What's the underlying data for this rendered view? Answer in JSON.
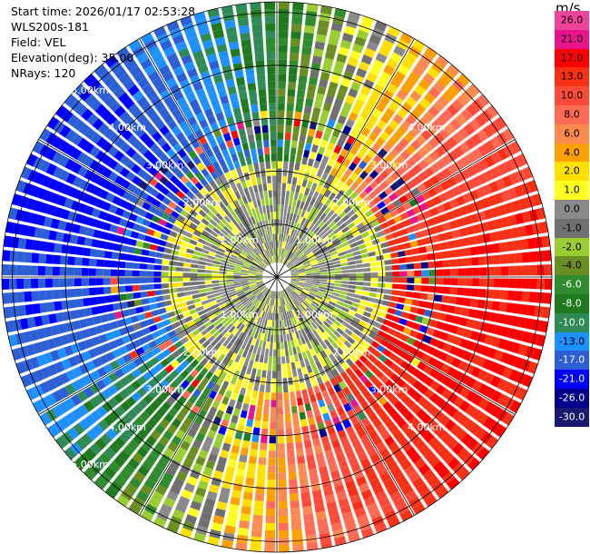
{
  "info": {
    "start_time": "Start time: 2026/01/17 02:53:28",
    "instrument": "WLS200s-181",
    "field": "Field: VEL",
    "elevation": "Elevation(deg): 35.00",
    "nrays": "NRays: 120"
  },
  "colorbar": {
    "unit": "m/s",
    "levels": [
      {
        "label": "26.0",
        "color": "#f0449a"
      },
      {
        "label": "21.0",
        "color": "#e8148c"
      },
      {
        "label": "17.0",
        "color": "#ff0000"
      },
      {
        "label": "13.0",
        "color": "#f83016"
      },
      {
        "label": "10.0",
        "color": "#ff4a3a"
      },
      {
        "label": "8.0",
        "color": "#ff6b55"
      },
      {
        "label": "6.0",
        "color": "#ff8a50"
      },
      {
        "label": "4.0",
        "color": "#ffa000"
      },
      {
        "label": "2.0",
        "color": "#ffe000"
      },
      {
        "label": "1.0",
        "color": "#ffff20"
      },
      {
        "label": "0.0",
        "color": "#8a8a8a"
      },
      {
        "label": "-1.0",
        "color": "#707070"
      },
      {
        "label": "-2.0",
        "color": "#9acd32"
      },
      {
        "label": "-4.0",
        "color": "#6b8e23"
      },
      {
        "label": "-6.0",
        "color": "#2e8b2e"
      },
      {
        "label": "-8.0",
        "color": "#1f7a1f"
      },
      {
        "label": "-10.0",
        "color": "#2e8b57"
      },
      {
        "label": "-13.0",
        "color": "#1e90ff"
      },
      {
        "label": "-17.0",
        "color": "#2c5fd6"
      },
      {
        "label": "-21.0",
        "color": "#0000ff"
      },
      {
        "label": "-26.0",
        "color": "#00008b"
      },
      {
        "label": "-30.0",
        "color": "#191970"
      }
    ]
  },
  "chart_data": {
    "type": "heatmap",
    "projection": "polar (PPI)",
    "range_rings": [
      {
        "label": "1.00km",
        "km": 1.0
      },
      {
        "label": "2.00km",
        "km": 2.0
      },
      {
        "label": "3.00km",
        "km": 3.0
      },
      {
        "label": "4.00km",
        "km": 4.0
      },
      {
        "label": "5.00km",
        "km": 5.0
      }
    ],
    "max_range_km": 5.2,
    "azimuth_spokes_deg": [
      0,
      30,
      60,
      90,
      120,
      150,
      180,
      210,
      240,
      270,
      300,
      330
    ],
    "nrays": 120,
    "gates_per_ray": 38,
    "field": "VEL",
    "units": "m/s",
    "velocity_min": -30,
    "velocity_max": 26
  }
}
